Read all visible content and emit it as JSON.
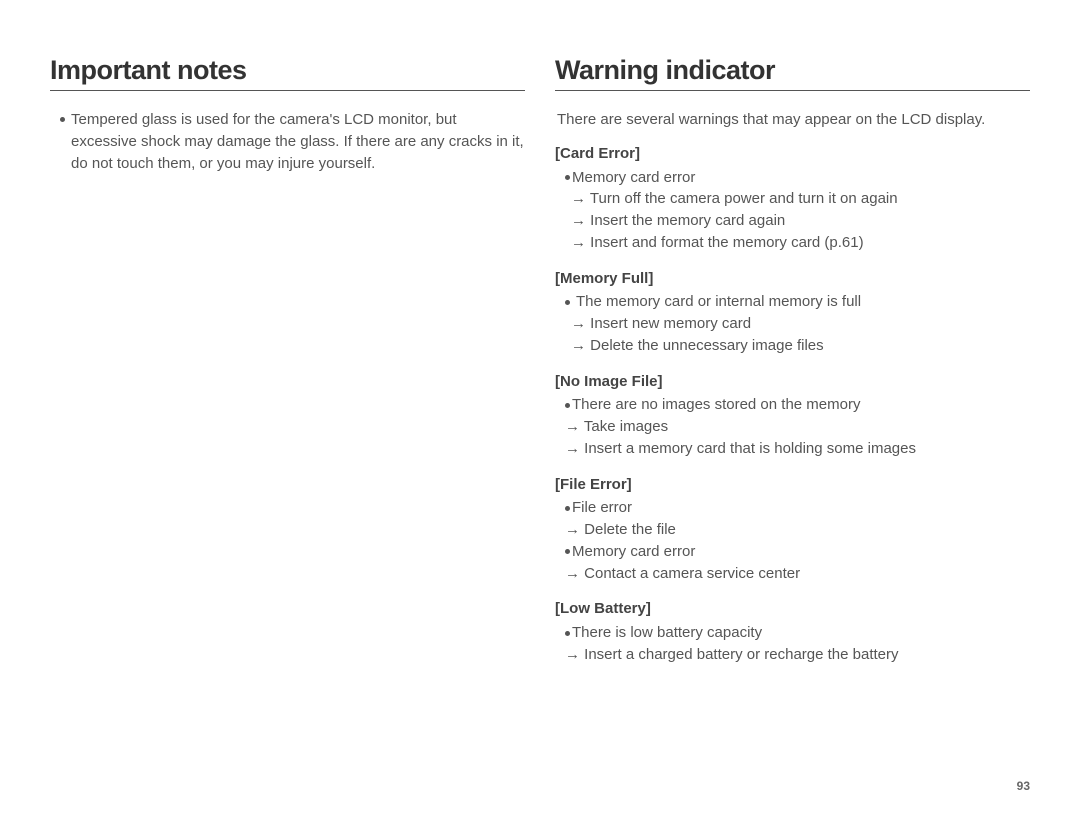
{
  "left": {
    "heading": "Important notes",
    "bullet": "Tempered glass is used for the camera's LCD monitor, but excessive shock may damage the glass. If there are any cracks in it, do not touch them, or you may injure yourself."
  },
  "right": {
    "heading": "Warning indicator",
    "intro": "There are several warnings that may appear on the LCD display.",
    "warnings": [
      {
        "title": "[Card Error]",
        "items": [
          {
            "type": "bullet",
            "text": "Memory card error"
          },
          {
            "type": "arrow",
            "text": "→ Turn off the camera power and turn it on again"
          },
          {
            "type": "arrow",
            "text": "→ Insert the memory card again"
          },
          {
            "type": "arrow",
            "text": "→ Insert and format the memory card (p.61)"
          }
        ]
      },
      {
        "title": "[Memory Full]",
        "items": [
          {
            "type": "bullet-sp",
            "text": "The memory card or internal memory is full"
          },
          {
            "type": "arrow",
            "text": "→ Insert new memory card"
          },
          {
            "type": "arrow",
            "text": "→ Delete the unnecessary image files"
          }
        ]
      },
      {
        "title": "[No Image File]",
        "items": [
          {
            "type": "bullet",
            "text": "There are no images stored on the memory"
          },
          {
            "type": "arrow-sh",
            "text": "→ Take images"
          },
          {
            "type": "arrow-sh",
            "text": "→ Insert a memory card that is holding some images"
          }
        ]
      },
      {
        "title": "[File Error]",
        "items": [
          {
            "type": "bullet",
            "text": "File error"
          },
          {
            "type": "arrow-sh",
            "text": "→ Delete the file"
          },
          {
            "type": "bullet",
            "text": "Memory card error"
          },
          {
            "type": "arrow-sh",
            "text": "→ Contact a camera service center"
          }
        ]
      },
      {
        "title": "[Low Battery]",
        "items": [
          {
            "type": "bullet",
            "text": "There is low battery capacity"
          },
          {
            "type": "arrow-sh",
            "text": "→ Insert a charged battery or recharge the battery"
          }
        ]
      }
    ]
  },
  "page_number": "93"
}
